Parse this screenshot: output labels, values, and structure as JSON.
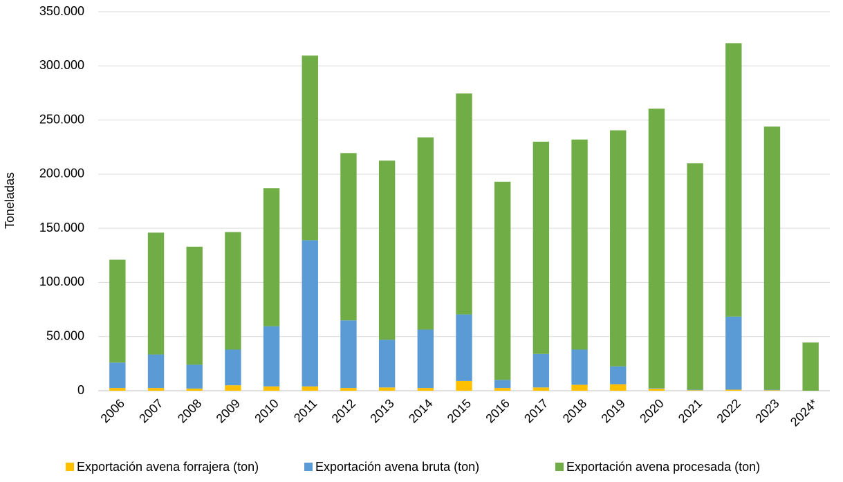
{
  "chart_data": {
    "type": "stacked_bar",
    "yaxis_label": "Toneladas",
    "categories": [
      "2006",
      "2007",
      "2008",
      "2009",
      "2010",
      "2011",
      "2012",
      "2013",
      "2014",
      "2015",
      "2016",
      "2017",
      "2018",
      "2019",
      "2020",
      "2021",
      "2022",
      "2023",
      "2024*"
    ],
    "series": [
      {
        "name": "Exportación avena forrajera (ton)",
        "color": "#ffc000",
        "values": [
          2500,
          2500,
          2000,
          5000,
          4000,
          4000,
          2500,
          3000,
          2500,
          9000,
          2500,
          3000,
          5500,
          6000,
          2000,
          500,
          1000,
          500,
          0
        ]
      },
      {
        "name": "Exportación avena bruta (ton)",
        "color": "#5b9bd5",
        "values": [
          23500,
          31000,
          22000,
          33000,
          55500,
          135000,
          62500,
          44000,
          54000,
          61500,
          7500,
          31000,
          32500,
          16500,
          500,
          500,
          67500,
          500,
          0
        ]
      },
      {
        "name": "Exportación avena procesada (ton)",
        "color": "#70ad47",
        "values": [
          95000,
          112500,
          109000,
          108500,
          127500,
          170500,
          154500,
          165500,
          177500,
          204000,
          183000,
          196000,
          194000,
          218000,
          258000,
          209000,
          252500,
          243000,
          44500
        ]
      }
    ],
    "ylim": [
      0,
      350000
    ],
    "yticks": [
      0,
      {
        "value": 50000,
        "label": "50.000"
      },
      {
        "value": 100000,
        "label": "100.000"
      },
      {
        "value": 150000,
        "label": "150.000"
      },
      {
        "value": 200000,
        "label": "200.000"
      },
      {
        "value": 250000,
        "label": "250.000"
      },
      {
        "value": 300000,
        "label": "300.000"
      },
      {
        "value": 350000,
        "label": "350.000"
      }
    ],
    "grid": true,
    "legend": "bottom"
  }
}
